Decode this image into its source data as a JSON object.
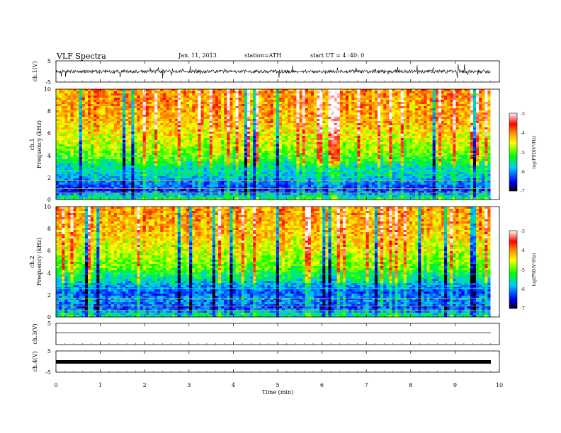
{
  "header": {
    "title": "VLF Spectra",
    "date": "Jan. 11, 2013",
    "station": "station=ATH",
    "start": "start UT = 4 :40: 0"
  },
  "chart_data": {
    "type": "heatmap",
    "x_axis": {
      "label": "Time (min)",
      "range": [
        0,
        10
      ],
      "ticks": [
        "0",
        "1",
        "2",
        "3",
        "4",
        "5",
        "6",
        "7",
        "8",
        "9",
        "10"
      ]
    },
    "waveform_ch1": {
      "label": "ch.1(V)",
      "ylim": [
        -5,
        5
      ],
      "ticks": [
        "5",
        "-5"
      ],
      "duration_min": 9.8
    },
    "spectrogram_ch1": {
      "label_lines": [
        "ch.1",
        "Frequency (kHz)"
      ],
      "ylim": [
        0,
        10
      ],
      "yticks": [
        "0",
        "2",
        "4",
        "6",
        "8",
        "10"
      ],
      "colorbar": {
        "label": "log(PSD(V²/Hz)",
        "range": [
          -7,
          -3
        ],
        "ticks": [
          "-3",
          "-4",
          "-5",
          "-6",
          "-7"
        ]
      },
      "freq_bands_kHz": [
        0,
        0.8,
        1.5,
        2.1,
        3,
        3.8,
        5.5,
        7,
        10
      ],
      "band_levels": [
        -5.2,
        -6.4,
        -6.1,
        -5.7,
        -5.6,
        -5.0,
        -4.6,
        -4.2,
        -4.0
      ],
      "duration_min": 9.8
    },
    "spectrogram_ch2": {
      "label_lines": [
        "ch.2",
        "Frequency (kHz)"
      ],
      "ylim": [
        0,
        10
      ],
      "yticks": [
        "0",
        "2",
        "4",
        "6",
        "8",
        "10"
      ],
      "colorbar": {
        "label": "log(PSD(V²/Hz)",
        "range": [
          -7,
          -3
        ],
        "ticks": [
          "-3",
          "-4",
          "-5",
          "-6",
          "-7"
        ]
      },
      "freq_bands_kHz": [
        0,
        0.8,
        1.5,
        2.3,
        3.5,
        4.5,
        6,
        8,
        10
      ],
      "band_levels": [
        -5.3,
        -6.3,
        -6.0,
        -6.2,
        -5.5,
        -5.0,
        -4.6,
        -4.2,
        -4.1
      ],
      "duration_min": 9.8
    },
    "waveform_ch3": {
      "label": "ch.3(V)",
      "ylim": [
        -5,
        5
      ],
      "ticks": [
        "5"
      ],
      "duration_min": 9.8
    },
    "waveform_ch4": {
      "label": "ch.4(V)",
      "ylim": [
        -5,
        5
      ],
      "ticks": [
        "5",
        "-5"
      ],
      "duration_min": 9.8
    }
  },
  "colors": {
    "colormap": [
      "#000000",
      "#0000ff",
      "#00c8ff",
      "#00ff00",
      "#ffff00",
      "#ff8c00",
      "#ff0000",
      "#ffffff"
    ]
  }
}
